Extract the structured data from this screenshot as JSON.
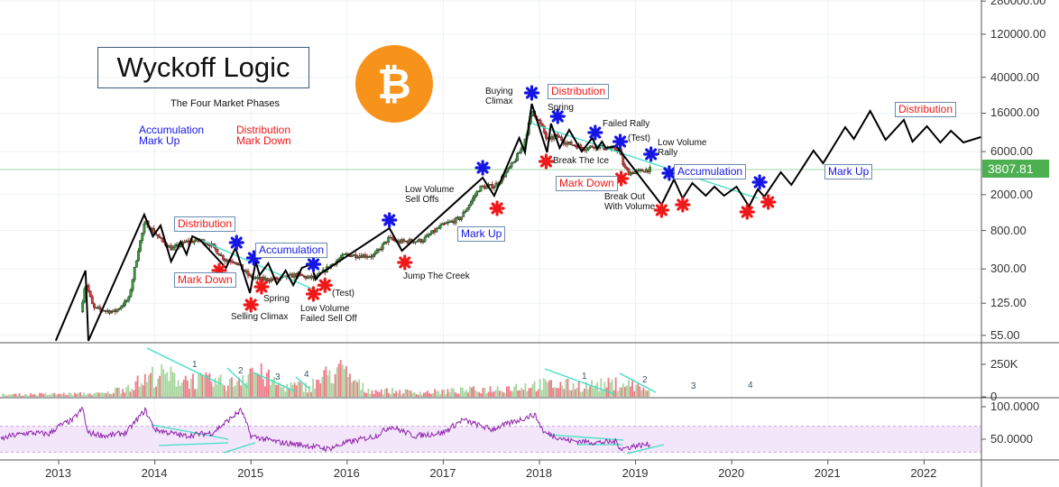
{
  "header": {
    "title": "Wyckoff Logic",
    "subtitle": "The Four Market Phases",
    "legend": {
      "accumulation": "Accumulation",
      "mark_up": "Mark Up",
      "distribution": "Distribution",
      "mark_down": "Mark Down"
    },
    "logo": "bitcoin-logo",
    "logo_glyph": "₿"
  },
  "colors": {
    "bitcoin": "#f7931a",
    "up": "#3f9a3f",
    "down": "#d23a3a",
    "vol_up": "#a8d5a0",
    "vol_down": "#ee7a86",
    "rsi": "#8e24aa",
    "rsi_band": "#f3e6fb",
    "trend": "#3fe0c5",
    "blue_marker": "#1515e6",
    "red_marker": "#f01818",
    "last_price": "#4caf50"
  },
  "annotations": {
    "boxes": [
      "Distribution",
      "Mark Down",
      "Accumulation",
      "Mark Up",
      "Distribution",
      "Mark Down",
      "Accumulation",
      "Mark Up",
      "Distribution"
    ],
    "labels": [
      "Spring",
      "Selling Climax",
      "Low Volume\nFailed Sell Off",
      "(Test)",
      "Jump The Creek",
      "Low Volume\nSell Offs",
      "Buying\nClimax",
      "Spring",
      "Failed Rally",
      "(Test)",
      "Low Volume\nRally",
      "Break The Ice",
      "Break Out\nWith Volume"
    ],
    "volume_counts": [
      "1",
      "2",
      "3",
      "4",
      "1",
      "2",
      "3",
      "4"
    ]
  },
  "chart_data": [
    {
      "type": "candlestick",
      "title": "Wyckoff Logic",
      "yscale": "log",
      "yticks": [
        "280000.00",
        "120000.00",
        "40000.00",
        "16000.00",
        "6000.00",
        "2000.00",
        "800.00",
        "300.00",
        "125.00",
        "55.00"
      ],
      "last_price": "3807.81",
      "xticks": [
        "2013",
        "2014",
        "2015",
        "2016",
        "2017",
        "2018",
        "2019",
        "2020",
        "2021",
        "2022"
      ],
      "xlim": [
        2012.4,
        2022.6
      ],
      "grid": true,
      "price_approx": [
        [
          2013.25,
          100
        ],
        [
          2013.3,
          220
        ],
        [
          2013.38,
          110
        ],
        [
          2013.6,
          100
        ],
        [
          2013.75,
          140
        ],
        [
          2013.85,
          500
        ],
        [
          2013.92,
          1000
        ],
        [
          2014.0,
          800
        ],
        [
          2014.1,
          600
        ],
        [
          2014.2,
          500
        ],
        [
          2014.35,
          600
        ],
        [
          2014.5,
          620
        ],
        [
          2014.6,
          560
        ],
        [
          2014.75,
          380
        ],
        [
          2014.85,
          370
        ],
        [
          2015.0,
          250
        ],
        [
          2015.1,
          230
        ],
        [
          2015.3,
          230
        ],
        [
          2015.5,
          260
        ],
        [
          2015.6,
          240
        ],
        [
          2015.7,
          240
        ],
        [
          2015.85,
          330
        ],
        [
          2016.0,
          430
        ],
        [
          2016.3,
          420
        ],
        [
          2016.45,
          650
        ],
        [
          2016.55,
          600
        ],
        [
          2016.8,
          620
        ],
        [
          2017.0,
          900
        ],
        [
          2017.2,
          1100
        ],
        [
          2017.4,
          2400
        ],
        [
          2017.55,
          2500
        ],
        [
          2017.6,
          2800
        ],
        [
          2017.75,
          4500
        ],
        [
          2017.85,
          7000
        ],
        [
          2017.95,
          17000
        ],
        [
          2018.05,
          11000
        ],
        [
          2018.1,
          8000
        ],
        [
          2018.2,
          9000
        ],
        [
          2018.3,
          7500
        ],
        [
          2018.4,
          7000
        ],
        [
          2018.5,
          6500
        ],
        [
          2018.6,
          7000
        ],
        [
          2018.75,
          6400
        ],
        [
          2018.85,
          6300
        ],
        [
          2018.9,
          4000
        ],
        [
          2018.95,
          3500
        ],
        [
          2019.05,
          3600
        ],
        [
          2019.15,
          3808
        ]
      ],
      "wyckoff_path": [
        [
          2012.97,
          48
        ],
        [
          2013.28,
          288
        ],
        [
          2013.31,
          48
        ],
        [
          2013.89,
          1200
        ],
        [
          2013.98,
          690
        ],
        [
          2014.06,
          910
        ],
        [
          2014.17,
          362
        ],
        [
          2014.27,
          601
        ],
        [
          2014.33,
          436
        ],
        [
          2014.39,
          690
        ],
        [
          2014.47,
          630
        ],
        [
          2014.74,
          308
        ],
        [
          2014.84,
          512
        ],
        [
          2014.99,
          162
        ],
        [
          2015.05,
          362
        ],
        [
          2015.09,
          256
        ],
        [
          2015.18,
          346
        ],
        [
          2015.27,
          204
        ],
        [
          2015.36,
          288
        ],
        [
          2015.44,
          198
        ],
        [
          2015.53,
          308
        ],
        [
          2015.63,
          338
        ],
        [
          2015.67,
          228
        ],
        [
          2015.73,
          269
        ],
        [
          2016.44,
          849
        ],
        [
          2016.57,
          478
        ],
        [
          2017.41,
          3083
        ],
        [
          2017.53,
          1945
        ],
        [
          2017.79,
          8492
        ],
        [
          2017.85,
          5875
        ],
        [
          2017.92,
          20370
        ],
        [
          2018.08,
          5875
        ],
        [
          2018.12,
          12270
        ],
        [
          2018.21,
          6590
        ],
        [
          2018.31,
          10450
        ],
        [
          2018.44,
          6010
        ],
        [
          2018.55,
          8492
        ],
        [
          2018.6,
          6440
        ],
        [
          2018.65,
          7745
        ],
        [
          2018.69,
          6590
        ],
        [
          2018.8,
          6900
        ],
        [
          2019.27,
          1545
        ],
        [
          2019.4,
          2944
        ],
        [
          2019.49,
          1816
        ],
        [
          2019.59,
          2685
        ],
        [
          2019.73,
          1945
        ],
        [
          2019.82,
          2449
        ],
        [
          2019.92,
          1945
        ],
        [
          2020.05,
          2449
        ],
        [
          2020.18,
          1476
        ],
        [
          2020.27,
          2286
        ],
        [
          2020.34,
          1901
        ],
        [
          2020.51,
          3540
        ],
        [
          2020.62,
          2564
        ],
        [
          2020.85,
          6150
        ],
        [
          2020.95,
          4457
        ],
        [
          2021.18,
          11190
        ],
        [
          2021.27,
          8300
        ],
        [
          2021.44,
          16940
        ],
        [
          2021.6,
          8110
        ],
        [
          2021.79,
          13460
        ],
        [
          2021.88,
          7745
        ],
        [
          2022.03,
          11450
        ],
        [
          2022.17,
          7570
        ],
        [
          2022.28,
          10210
        ],
        [
          2022.41,
          7570
        ],
        [
          2022.59,
          8690
        ]
      ],
      "blue_markers": [
        [
          2014.85,
          587
        ],
        [
          2015.03,
          397
        ],
        [
          2015.65,
          338
        ],
        [
          2016.44,
          1045
        ],
        [
          2017.41,
          3972
        ],
        [
          2017.92,
          26850
        ],
        [
          2018.19,
          14760
        ],
        [
          2018.58,
          9750
        ],
        [
          2018.84,
          7745
        ],
        [
          2019.16,
          5610
        ],
        [
          2019.35,
          3460
        ],
        [
          2020.29,
          2748
        ]
      ],
      "red_markers": [
        [
          2014.67,
          288
        ],
        [
          2015.0,
          120
        ],
        [
          2015.11,
          190
        ],
        [
          2015.65,
          158
        ],
        [
          2015.77,
          198
        ],
        [
          2016.6,
          354
        ],
        [
          2017.56,
          1409
        ],
        [
          2018.07,
          4667
        ],
        [
          2018.85,
          3013
        ],
        [
          2019.27,
          1346
        ],
        [
          2019.49,
          1545
        ],
        [
          2020.16,
          1285
        ],
        [
          2020.38,
          1656
        ]
      ]
    },
    {
      "type": "bar",
      "ylabel": "",
      "yticks": [
        "250K",
        "0"
      ],
      "volume_level_k": [
        [
          2012.5,
          20
        ],
        [
          2013.0,
          25
        ],
        [
          2013.5,
          30
        ],
        [
          2013.9,
          150
        ],
        [
          2014.0,
          200
        ],
        [
          2014.4,
          150
        ],
        [
          2014.8,
          120
        ],
        [
          2015.0,
          250
        ],
        [
          2015.3,
          100
        ],
        [
          2015.6,
          90
        ],
        [
          2015.9,
          250
        ],
        [
          2016.2,
          60
        ],
        [
          2016.8,
          40
        ],
        [
          2017.5,
          70
        ],
        [
          2018.0,
          110
        ],
        [
          2018.5,
          100
        ],
        [
          2018.9,
          120
        ],
        [
          2019.15,
          60
        ]
      ]
    },
    {
      "type": "line",
      "yticks": [
        "100.0000",
        "50.0000"
      ],
      "band": [
        30,
        70
      ],
      "rsi": [
        [
          2012.4,
          50
        ],
        [
          2012.5,
          55
        ],
        [
          2012.7,
          60
        ],
        [
          2012.9,
          58
        ],
        [
          2013.0,
          70
        ],
        [
          2013.15,
          80
        ],
        [
          2013.25,
          98
        ],
        [
          2013.3,
          60
        ],
        [
          2013.5,
          55
        ],
        [
          2013.7,
          60
        ],
        [
          2013.9,
          95
        ],
        [
          2014.0,
          65
        ],
        [
          2014.3,
          55
        ],
        [
          2014.6,
          60
        ],
        [
          2014.9,
          95
        ],
        [
          2015.0,
          55
        ],
        [
          2015.3,
          45
        ],
        [
          2015.6,
          40
        ],
        [
          2015.8,
          35
        ],
        [
          2016.0,
          45
        ],
        [
          2016.3,
          55
        ],
        [
          2016.45,
          70
        ],
        [
          2016.7,
          55
        ],
        [
          2017.0,
          60
        ],
        [
          2017.2,
          80
        ],
        [
          2017.5,
          65
        ],
        [
          2017.7,
          75
        ],
        [
          2017.95,
          88
        ],
        [
          2018.05,
          60
        ],
        [
          2018.3,
          48
        ],
        [
          2018.6,
          45
        ],
        [
          2018.8,
          46
        ],
        [
          2018.85,
          35
        ],
        [
          2019.0,
          40
        ],
        [
          2019.15,
          42
        ]
      ]
    }
  ]
}
